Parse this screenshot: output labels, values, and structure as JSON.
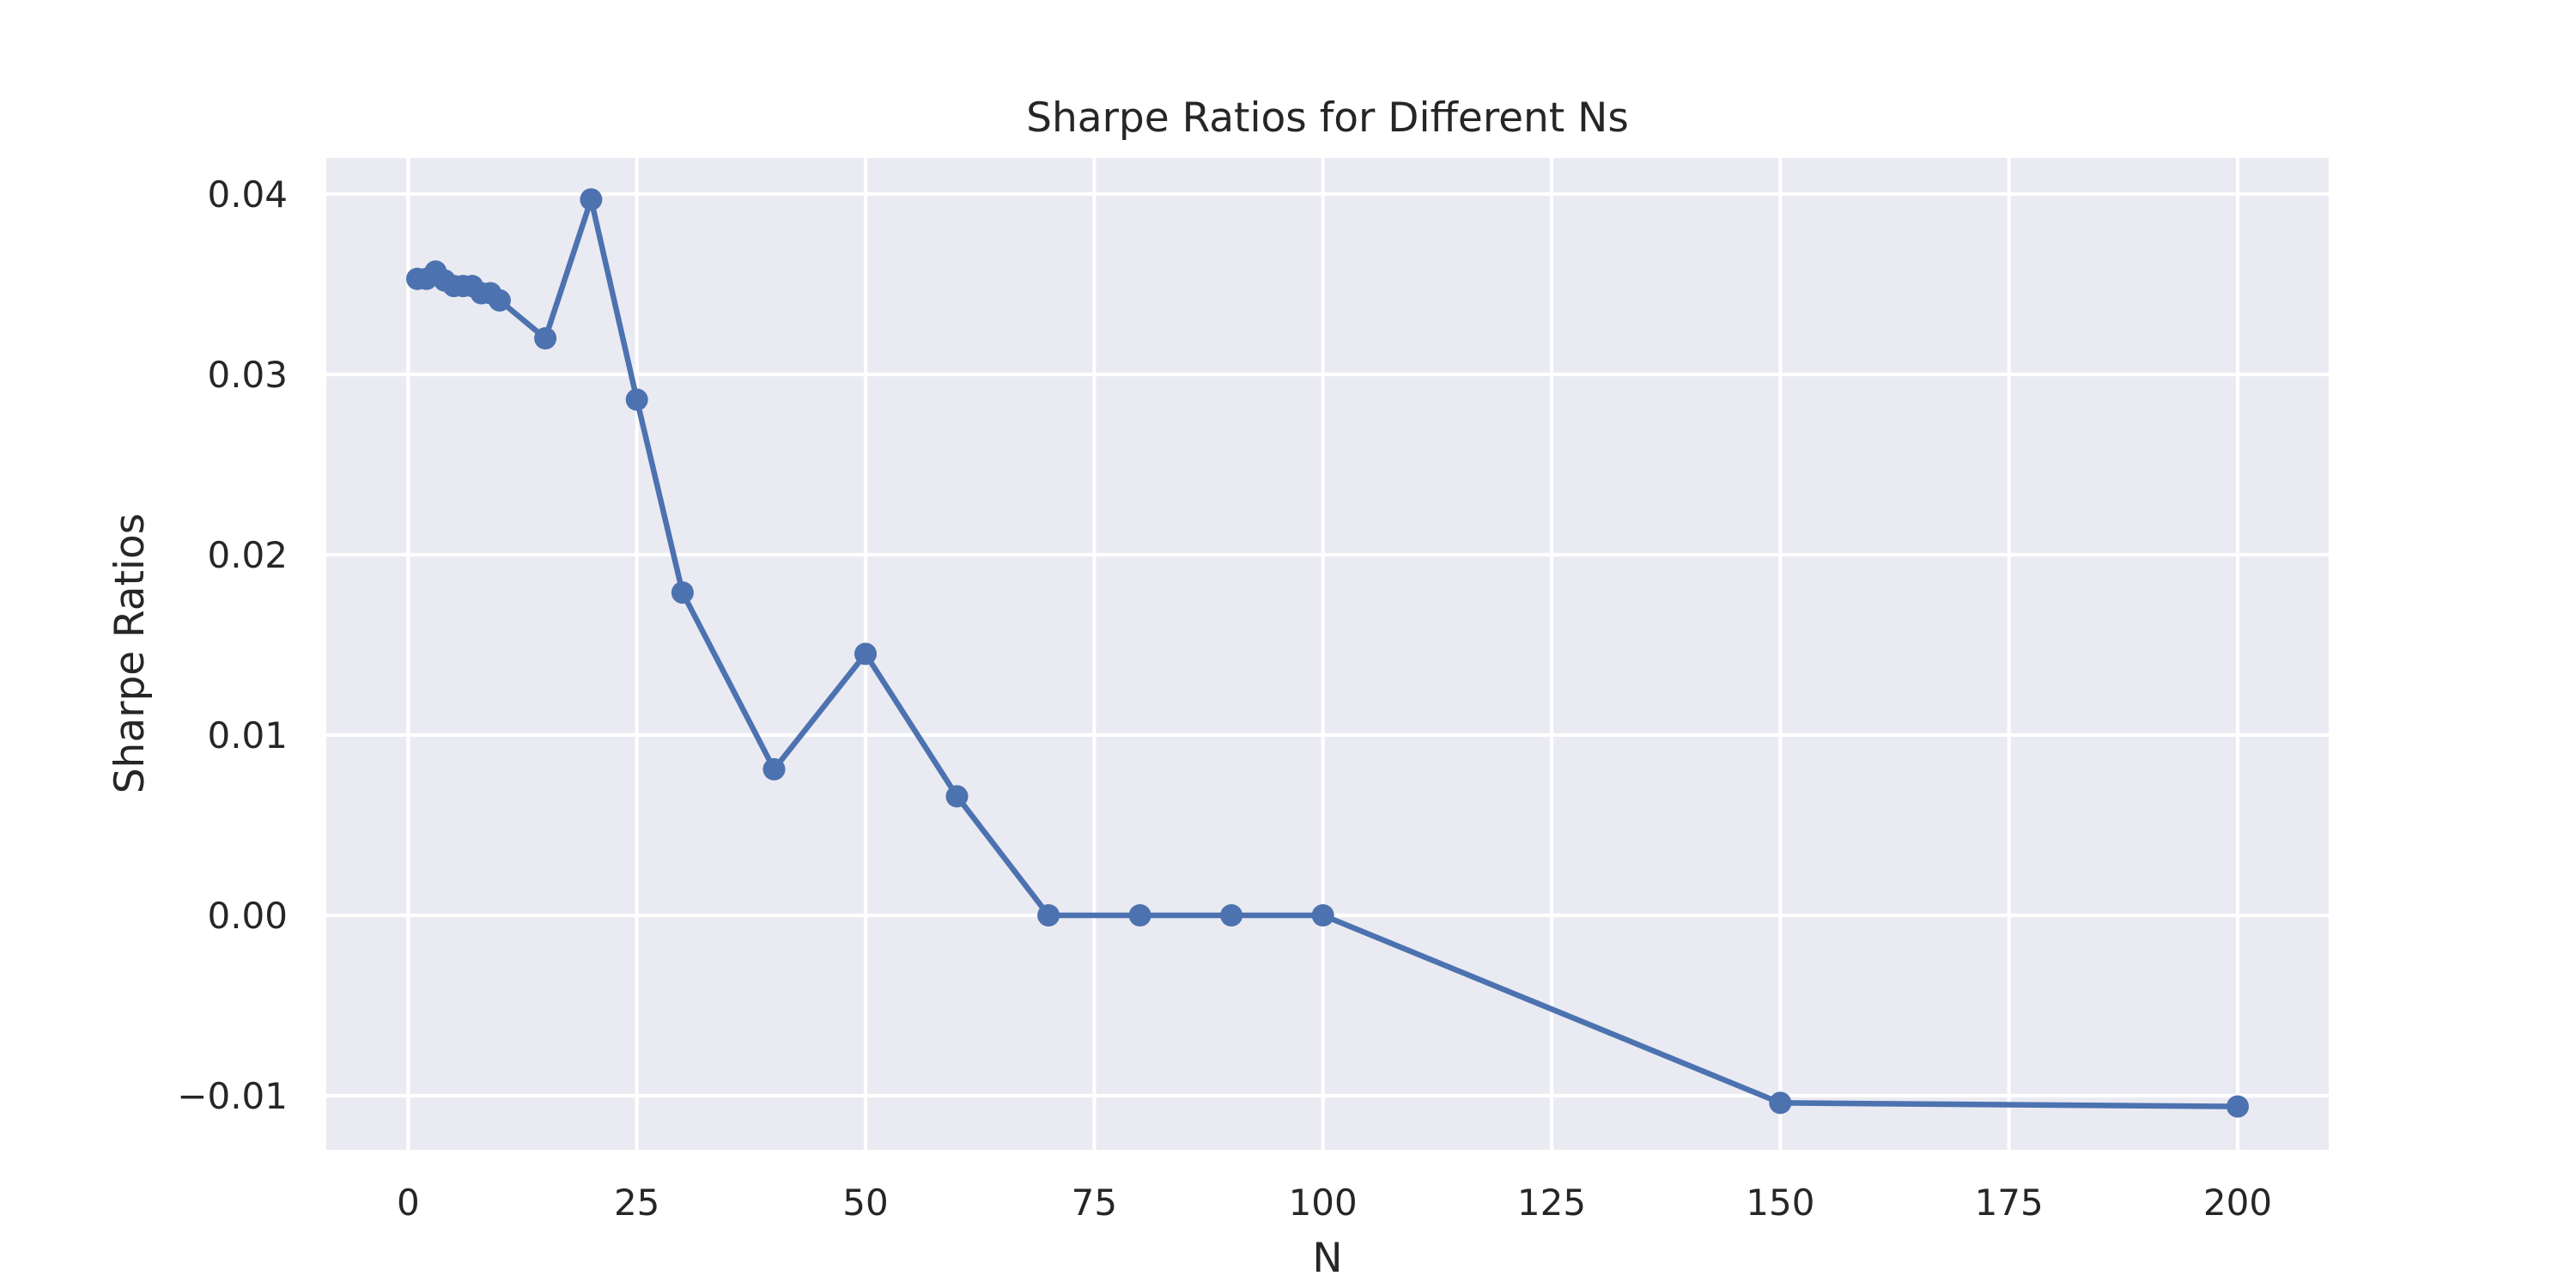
{
  "chart_data": {
    "type": "line",
    "title": "Sharpe Ratios for Different Ns",
    "xlabel": "N",
    "ylabel": "Sharpe Ratios",
    "xlim": [
      -8.95,
      209.95
    ],
    "ylim": [
      -0.013,
      0.042
    ],
    "grid": true,
    "x_ticks": [
      {
        "value": 0,
        "label": "0"
      },
      {
        "value": 25,
        "label": "25"
      },
      {
        "value": 50,
        "label": "50"
      },
      {
        "value": 75,
        "label": "75"
      },
      {
        "value": 100,
        "label": "100"
      },
      {
        "value": 125,
        "label": "125"
      },
      {
        "value": 150,
        "label": "150"
      },
      {
        "value": 175,
        "label": "175"
      },
      {
        "value": 200,
        "label": "200"
      }
    ],
    "y_ticks": [
      {
        "value": -0.01,
        "label": "−0.01"
      },
      {
        "value": 0.0,
        "label": "0.00"
      },
      {
        "value": 0.01,
        "label": "0.01"
      },
      {
        "value": 0.02,
        "label": "0.02"
      },
      {
        "value": 0.03,
        "label": "0.03"
      },
      {
        "value": 0.04,
        "label": "0.04"
      }
    ],
    "series": [
      {
        "color": "#4c72b0",
        "x": [
          1,
          2,
          3,
          4,
          5,
          6,
          7,
          8,
          9,
          10,
          15,
          20,
          25,
          30,
          40,
          50,
          60,
          70,
          80,
          90,
          100,
          150,
          200
        ],
        "y": [
          0.0353,
          0.0353,
          0.0357,
          0.0352,
          0.0349,
          0.0349,
          0.0349,
          0.0345,
          0.0345,
          0.0341,
          0.032,
          0.0397,
          0.0286,
          0.0179,
          0.0081,
          0.0145,
          0.0066,
          0.0,
          0.0,
          0.0,
          0.0,
          -0.0104,
          -0.0106
        ]
      }
    ]
  }
}
